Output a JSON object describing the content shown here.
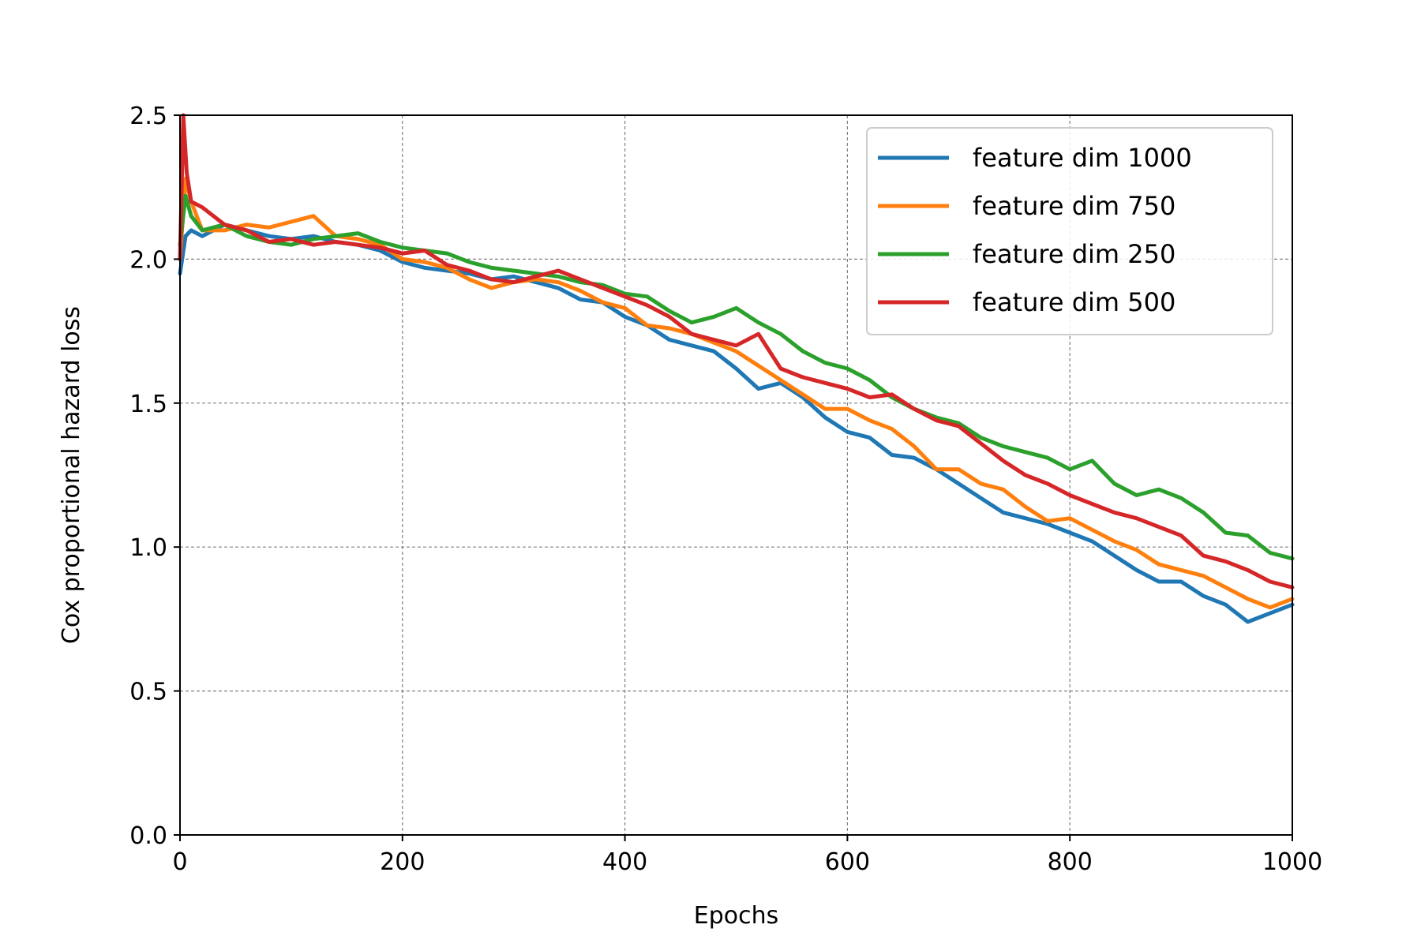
{
  "chart_data": {
    "type": "line",
    "title": "",
    "xlabel": "Epochs",
    "ylabel": "Cox proportional hazard loss",
    "xlim": [
      0,
      1000
    ],
    "ylim": [
      0.0,
      2.5
    ],
    "x_ticks": [
      0,
      200,
      400,
      600,
      800,
      1000
    ],
    "x_tick_labels": [
      "0",
      "200",
      "400",
      "600",
      "800",
      "1000"
    ],
    "y_ticks": [
      0.0,
      0.5,
      1.0,
      1.5,
      2.0,
      2.5
    ],
    "y_tick_labels": [
      "0.0",
      "0.5",
      "1.0",
      "1.5",
      "2.0",
      "2.5"
    ],
    "grid": true,
    "legend_position": "top-right",
    "series": [
      {
        "name": "feature dim 1000",
        "color": "#1f77b4",
        "x": [
          0,
          5,
          10,
          20,
          40,
          60,
          80,
          100,
          120,
          140,
          160,
          180,
          200,
          220,
          240,
          260,
          280,
          300,
          320,
          340,
          360,
          380,
          400,
          420,
          440,
          460,
          480,
          500,
          520,
          540,
          560,
          580,
          600,
          620,
          640,
          660,
          680,
          700,
          720,
          740,
          760,
          780,
          800,
          820,
          840,
          860,
          880,
          900,
          920,
          940,
          960,
          980,
          1000
        ],
        "y": [
          1.95,
          2.08,
          2.1,
          2.08,
          2.12,
          2.1,
          2.08,
          2.07,
          2.08,
          2.06,
          2.05,
          2.03,
          1.99,
          1.97,
          1.96,
          1.95,
          1.93,
          1.94,
          1.92,
          1.9,
          1.86,
          1.85,
          1.8,
          1.77,
          1.72,
          1.7,
          1.68,
          1.62,
          1.55,
          1.57,
          1.52,
          1.45,
          1.4,
          1.38,
          1.32,
          1.31,
          1.27,
          1.22,
          1.17,
          1.12,
          1.1,
          1.08,
          1.05,
          1.02,
          0.97,
          0.92,
          0.88,
          0.88,
          0.83,
          0.8,
          0.74,
          0.77,
          0.8
        ]
      },
      {
        "name": "feature dim 750",
        "color": "#ff7f0e",
        "x": [
          0,
          5,
          10,
          20,
          40,
          60,
          80,
          100,
          120,
          140,
          160,
          180,
          200,
          220,
          240,
          260,
          280,
          300,
          320,
          340,
          360,
          380,
          400,
          420,
          440,
          460,
          480,
          500,
          520,
          540,
          560,
          580,
          600,
          620,
          640,
          660,
          680,
          700,
          720,
          740,
          760,
          780,
          800,
          820,
          840,
          860,
          880,
          900,
          920,
          940,
          960,
          980,
          1000
        ],
        "y": [
          2.0,
          2.28,
          2.2,
          2.1,
          2.1,
          2.12,
          2.11,
          2.13,
          2.15,
          2.08,
          2.07,
          2.05,
          2.0,
          1.99,
          1.97,
          1.93,
          1.9,
          1.92,
          1.93,
          1.92,
          1.89,
          1.85,
          1.83,
          1.77,
          1.76,
          1.74,
          1.71,
          1.68,
          1.63,
          1.58,
          1.53,
          1.48,
          1.48,
          1.44,
          1.41,
          1.35,
          1.27,
          1.27,
          1.22,
          1.2,
          1.14,
          1.09,
          1.1,
          1.06,
          1.02,
          0.99,
          0.94,
          0.92,
          0.9,
          0.86,
          0.82,
          0.79,
          0.82
        ]
      },
      {
        "name": "feature dim 250",
        "color": "#2ca02c",
        "x": [
          0,
          5,
          10,
          20,
          40,
          60,
          80,
          100,
          120,
          140,
          160,
          180,
          200,
          220,
          240,
          260,
          280,
          300,
          320,
          340,
          360,
          380,
          400,
          420,
          440,
          460,
          480,
          500,
          520,
          540,
          560,
          580,
          600,
          620,
          640,
          660,
          680,
          700,
          720,
          740,
          760,
          780,
          800,
          820,
          840,
          860,
          880,
          900,
          920,
          940,
          960,
          980,
          1000
        ],
        "y": [
          2.05,
          2.22,
          2.15,
          2.1,
          2.12,
          2.08,
          2.06,
          2.05,
          2.07,
          2.08,
          2.09,
          2.06,
          2.04,
          2.03,
          2.02,
          1.99,
          1.97,
          1.96,
          1.95,
          1.94,
          1.92,
          1.91,
          1.88,
          1.87,
          1.82,
          1.78,
          1.8,
          1.83,
          1.78,
          1.74,
          1.68,
          1.64,
          1.62,
          1.58,
          1.52,
          1.48,
          1.45,
          1.43,
          1.38,
          1.35,
          1.33,
          1.31,
          1.27,
          1.3,
          1.22,
          1.18,
          1.2,
          1.17,
          1.12,
          1.05,
          1.04,
          0.98,
          0.96
        ]
      },
      {
        "name": "feature dim 500",
        "color": "#d62728",
        "x": [
          0,
          3,
          6,
          10,
          20,
          40,
          60,
          80,
          100,
          120,
          140,
          160,
          180,
          200,
          220,
          240,
          260,
          280,
          300,
          320,
          340,
          360,
          380,
          400,
          420,
          440,
          460,
          480,
          500,
          520,
          540,
          560,
          580,
          600,
          620,
          640,
          660,
          680,
          700,
          720,
          740,
          760,
          780,
          800,
          820,
          840,
          860,
          880,
          900,
          920,
          940,
          960,
          980,
          1000
        ],
        "y": [
          2.0,
          2.5,
          2.3,
          2.2,
          2.18,
          2.12,
          2.1,
          2.06,
          2.07,
          2.05,
          2.06,
          2.05,
          2.04,
          2.02,
          2.03,
          1.98,
          1.96,
          1.93,
          1.92,
          1.94,
          1.96,
          1.93,
          1.9,
          1.87,
          1.84,
          1.8,
          1.74,
          1.72,
          1.7,
          1.74,
          1.62,
          1.59,
          1.57,
          1.55,
          1.52,
          1.53,
          1.48,
          1.44,
          1.42,
          1.36,
          1.3,
          1.25,
          1.22,
          1.18,
          1.15,
          1.12,
          1.1,
          1.07,
          1.04,
          0.97,
          0.95,
          0.92,
          0.88,
          0.86
        ]
      }
    ]
  }
}
